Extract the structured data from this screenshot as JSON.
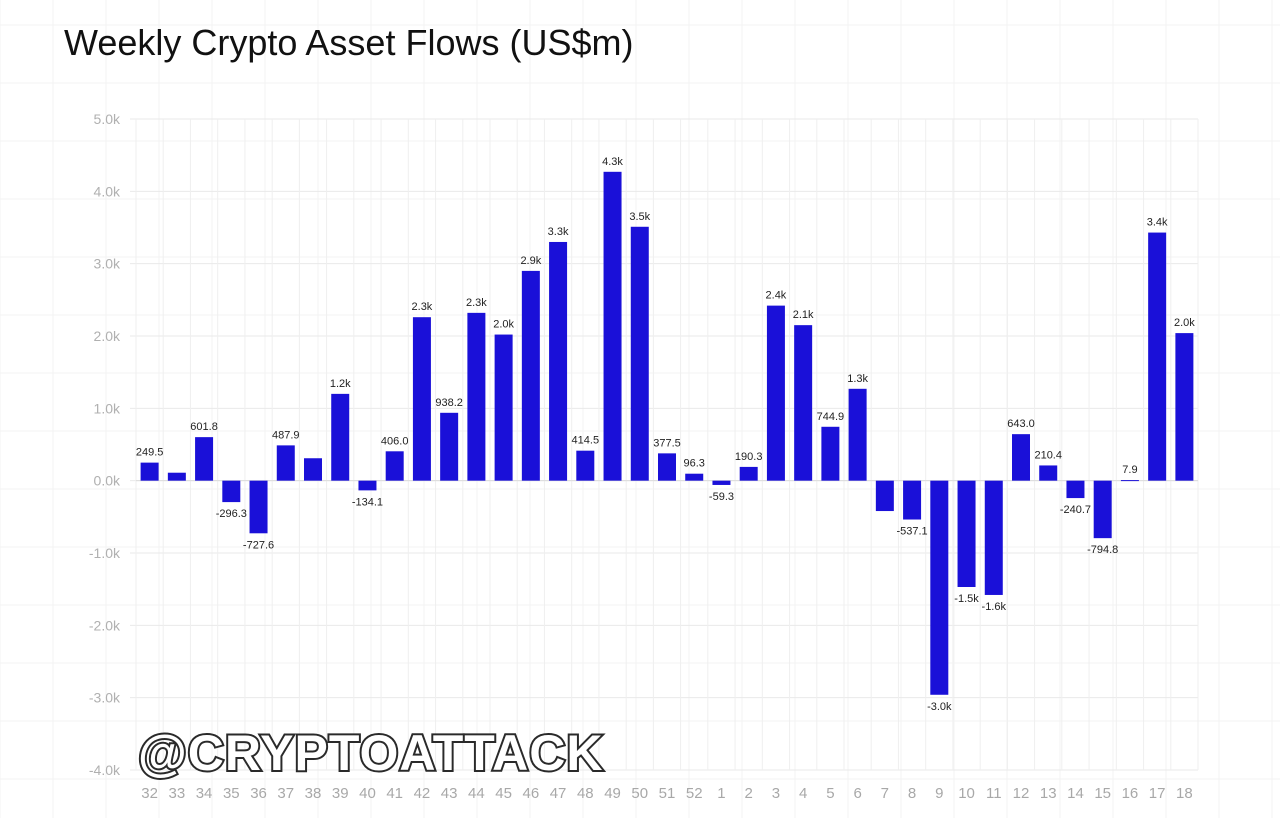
{
  "chart_data": {
    "type": "bar",
    "title": "Weekly Crypto Asset Flows (US$m)",
    "xlabel": "",
    "ylabel": "",
    "ylim": [
      -4000,
      5000
    ],
    "grid": true,
    "legend": "none",
    "bar_color": "#1a10d8",
    "y_ticks": [
      {
        "value": 5000,
        "label": "5.0k"
      },
      {
        "value": 4000,
        "label": "4.0k"
      },
      {
        "value": 3000,
        "label": "3.0k"
      },
      {
        "value": 2000,
        "label": "2.0k"
      },
      {
        "value": 1000,
        "label": "1.0k"
      },
      {
        "value": 0,
        "label": "0.0k"
      },
      {
        "value": -1000,
        "label": "-1.0k"
      },
      {
        "value": -2000,
        "label": "-2.0k"
      },
      {
        "value": -3000,
        "label": "-3.0k"
      },
      {
        "value": -4000,
        "label": "-4.0k"
      }
    ],
    "categories": [
      "32",
      "33",
      "34",
      "35",
      "36",
      "37",
      "38",
      "39",
      "40",
      "41",
      "42",
      "43",
      "44",
      "45",
      "46",
      "47",
      "48",
      "49",
      "50",
      "51",
      "52",
      "1",
      "2",
      "3",
      "4",
      "5",
      "6",
      "7",
      "8",
      "9",
      "10",
      "11",
      "12",
      "13",
      "14",
      "15",
      "16",
      "17",
      "18"
    ],
    "values": [
      249.5,
      110,
      601.8,
      -296.3,
      -727.6,
      487.9,
      310,
      1200,
      -134.1,
      406.0,
      2260,
      938.2,
      2320,
      2020,
      2900,
      3300,
      414.5,
      4270,
      3510,
      377.5,
      96.3,
      -59.3,
      190.3,
      2420,
      2150,
      744.9,
      1270,
      -420,
      -537.1,
      -2960,
      -1470,
      -1580,
      643.0,
      210.4,
      -240.7,
      -794.8,
      7.9,
      3430,
      2040
    ],
    "data_labels": [
      "249.5",
      "",
      "601.8",
      "-296.3",
      "-727.6",
      "487.9",
      "",
      "1.2k",
      "-134.1",
      "406.0",
      "2.3k",
      "938.2",
      "2.3k",
      "2.0k",
      "2.9k",
      "3.3k",
      "414.5",
      "4.3k",
      "3.5k",
      "377.5",
      "96.3",
      "-59.3",
      "190.3",
      "2.4k",
      "2.1k",
      "744.9",
      "1.3k",
      "",
      "-537.1",
      "-3.0k",
      "-1.5k",
      "-1.6k",
      "643.0",
      "210.4",
      "-240.7",
      "-794.8",
      "7.9",
      "3.4k",
      "2.0k"
    ]
  },
  "watermark": "@CRYPTOATTACK"
}
